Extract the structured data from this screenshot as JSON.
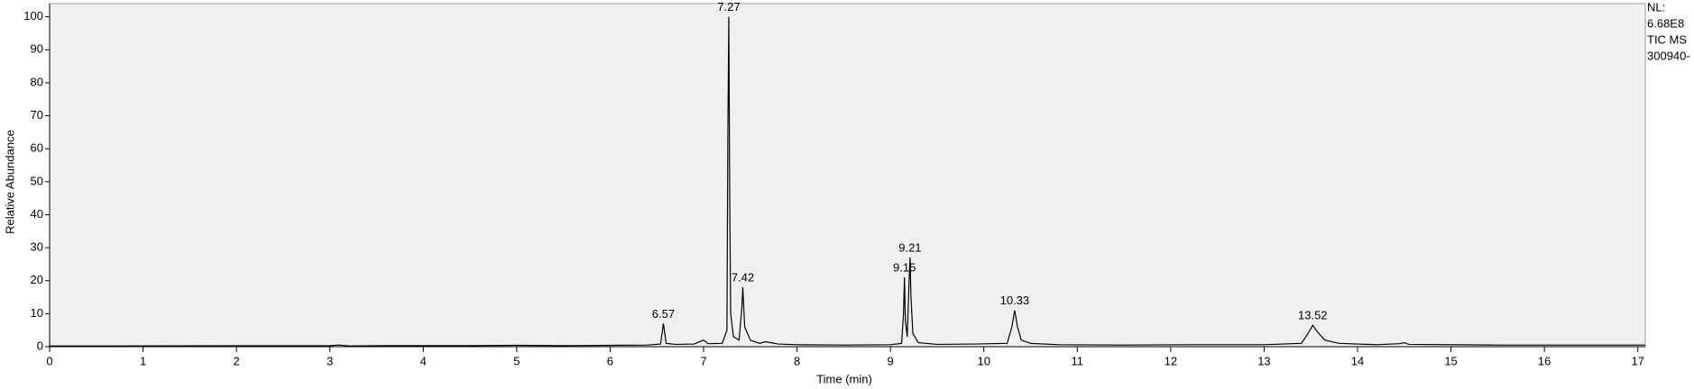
{
  "chart_data": {
    "type": "line",
    "xlabel": "Time (min)",
    "ylabel": "Relative Abundance",
    "side_info": [
      "NL:",
      "6.68E8",
      "TIC  MS",
      "300940-"
    ],
    "x": [
      0,
      3.0,
      3.1,
      3.2,
      3.6,
      4.1,
      4.5,
      5.0,
      5.5,
      6.0,
      6.4,
      6.54,
      6.57,
      6.6,
      6.7,
      6.9,
      7.0,
      7.05,
      7.2,
      7.25,
      7.26,
      7.27,
      7.28,
      7.29,
      7.32,
      7.38,
      7.41,
      7.42,
      7.44,
      7.5,
      7.6,
      7.66,
      7.8,
      8.0,
      8.5,
      9.0,
      9.12,
      9.14,
      9.15,
      9.16,
      9.18,
      9.2,
      9.21,
      9.22,
      9.24,
      9.3,
      9.5,
      9.9,
      10.25,
      10.3,
      10.33,
      10.36,
      10.4,
      10.5,
      10.8,
      11.5,
      12.2,
      13.0,
      13.4,
      13.47,
      13.52,
      13.57,
      13.65,
      13.8,
      14.2,
      14.45,
      14.5,
      14.55,
      15.5,
      17.08
    ],
    "series": [
      {
        "color": "#000000",
        "values": [
          0.2,
          0.3,
          0.5,
          0.2,
          0.3,
          0.3,
          0.3,
          0.4,
          0.3,
          0.4,
          0.5,
          0.8,
          7,
          1,
          0.7,
          0.8,
          2,
          0.9,
          1,
          5,
          64,
          100,
          44,
          10,
          3,
          2,
          12,
          18,
          6,
          2,
          1,
          1.5,
          0.8,
          0.6,
          0.5,
          0.6,
          1,
          10,
          21,
          8,
          3,
          20,
          27,
          15,
          4,
          1.2,
          0.7,
          0.8,
          1,
          6,
          11,
          6,
          2,
          1,
          0.6,
          0.5,
          0.6,
          0.6,
          1,
          4,
          6.5,
          4.5,
          2,
          1,
          0.6,
          0.9,
          1.2,
          0.7,
          0.5,
          0.5
        ]
      }
    ],
    "peaks": [
      {
        "x": 6.57,
        "y": 7
      },
      {
        "x": 7.27,
        "y": 100
      },
      {
        "x": 7.42,
        "y": 18
      },
      {
        "x": 9.15,
        "y": 21
      },
      {
        "x": 9.21,
        "y": 27
      },
      {
        "x": 10.33,
        "y": 11
      },
      {
        "x": 13.52,
        "y": 6.5
      }
    ],
    "xlim": [
      0,
      17.08
    ],
    "ylim": [
      0,
      104
    ],
    "xticks": [
      0,
      1,
      2,
      3,
      4,
      5,
      6,
      7,
      8,
      9,
      10,
      11,
      12,
      13,
      14,
      15,
      16,
      17
    ],
    "yticks": [
      0,
      10,
      20,
      30,
      40,
      50,
      60,
      70,
      80,
      90,
      100
    ],
    "background": "#f0f0f0",
    "grid": false
  }
}
